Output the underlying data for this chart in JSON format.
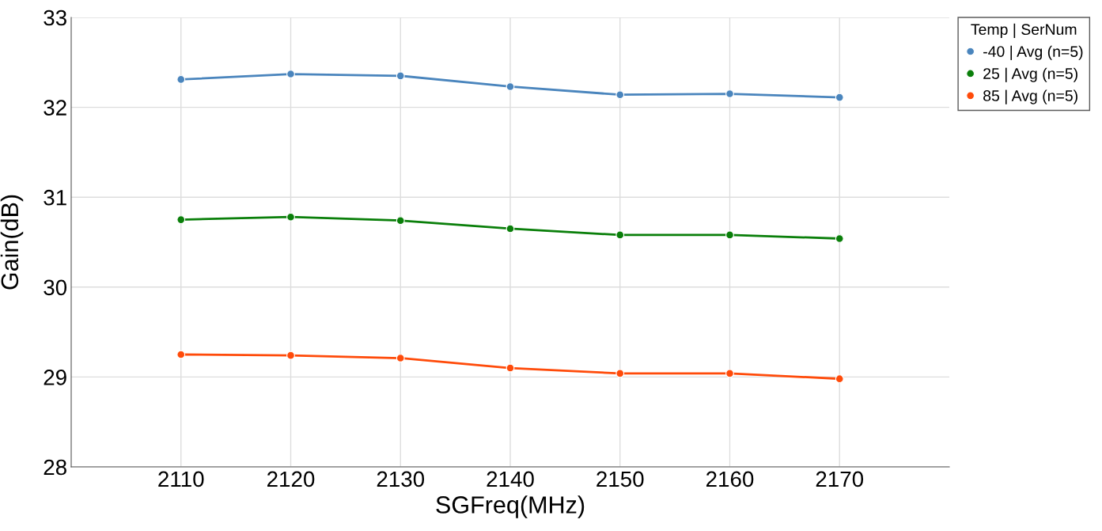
{
  "chart_data": {
    "type": "line",
    "xlabel": "SGFreq(MHz)",
    "ylabel": "Gain(dB)",
    "legend_title": "Temp | SerNum",
    "legend": "top right",
    "grid": true,
    "marker": "circle",
    "line_style": "solid",
    "x": [
      2110,
      2120,
      2130,
      2140,
      2150,
      2160,
      2170
    ],
    "xlim": [
      2100,
      2180
    ],
    "xticks": [
      2110,
      2120,
      2130,
      2140,
      2150,
      2160,
      2170
    ],
    "ylim": [
      28,
      33
    ],
    "yticks": [
      28,
      29,
      30,
      31,
      32,
      33
    ],
    "series": [
      {
        "name": "-40 | Avg (n=5)",
        "color": "#4a85bd",
        "values": [
          32.31,
          32.37,
          32.35,
          32.23,
          32.14,
          32.15,
          32.11
        ]
      },
      {
        "name": "25 | Avg (n=5)",
        "color": "#0a7f0a",
        "values": [
          30.75,
          30.78,
          30.74,
          30.65,
          30.58,
          30.58,
          30.54
        ]
      },
      {
        "name": "85 | Avg (n=5)",
        "color": "#ff4b0a",
        "values": [
          29.25,
          29.24,
          29.21,
          29.1,
          29.04,
          29.04,
          28.98
        ]
      }
    ]
  }
}
